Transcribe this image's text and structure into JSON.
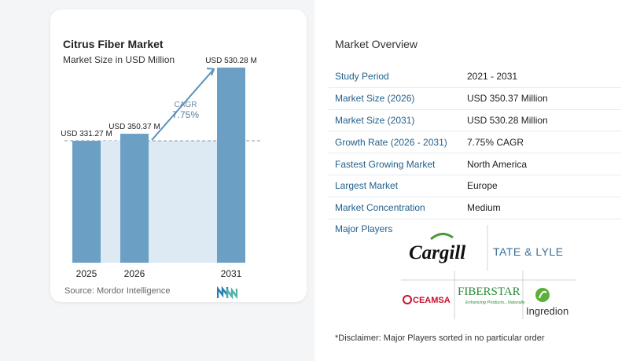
{
  "chart_card": {
    "title": "Citrus Fiber Market",
    "subtitle": "Market Size in USD Million",
    "source": "Source: Mordor Intelligence"
  },
  "chart_data": {
    "type": "bar",
    "title": "Citrus Fiber Market",
    "subtitle": "Market Size in USD Million",
    "categories": [
      "2025",
      "2026",
      "2031"
    ],
    "values": [
      331.27,
      350.37,
      530.28
    ],
    "value_labels": [
      "USD 331.27 M",
      "USD 350.37 M",
      "USD 530.28 M"
    ],
    "bar_color": "#6b9fc4",
    "band_color": "#dde9f3",
    "cagr_label": "CAGR",
    "cagr_value": "7.75%",
    "cagr_color": "#5b95bf",
    "ylim": [
      0,
      560
    ],
    "grid": false
  },
  "overview": {
    "title": "Market Overview",
    "rows": [
      {
        "label": "Study Period",
        "value": "2021 - 2031"
      },
      {
        "label": "Market Size (2026)",
        "value": "USD 350.37 Million"
      },
      {
        "label": "Market Size (2031)",
        "value": "USD 530.28 Million"
      },
      {
        "label": "Growth Rate (2026 - 2031)",
        "value": "7.75% CAGR"
      },
      {
        "label": "Fastest Growing Market",
        "value": "North America"
      },
      {
        "label": "Largest Market",
        "value": "Europe"
      },
      {
        "label": "Market Concentration",
        "value": "Medium"
      }
    ],
    "players_label": "Major Players",
    "players": [
      "Cargill",
      "TATE & LYLE",
      "CEAMSA",
      "FIBERSTAR",
      "Enhancing Products...Naturally",
      "Ingredion"
    ],
    "disclaimer": "*Disclaimer: Major Players sorted in no particular order"
  },
  "colors": {
    "label_blue": "#1f5f8b",
    "cargill_green": "#4a9a3c",
    "tate_blue": "#3a6f9a",
    "tate_red": "#d63b2f",
    "ceamsa_red": "#c8102e",
    "fiberstar_green": "#2e8b3c",
    "ingredion_green": "#5bb03a",
    "mordor_teal": "#2a7fb0"
  }
}
